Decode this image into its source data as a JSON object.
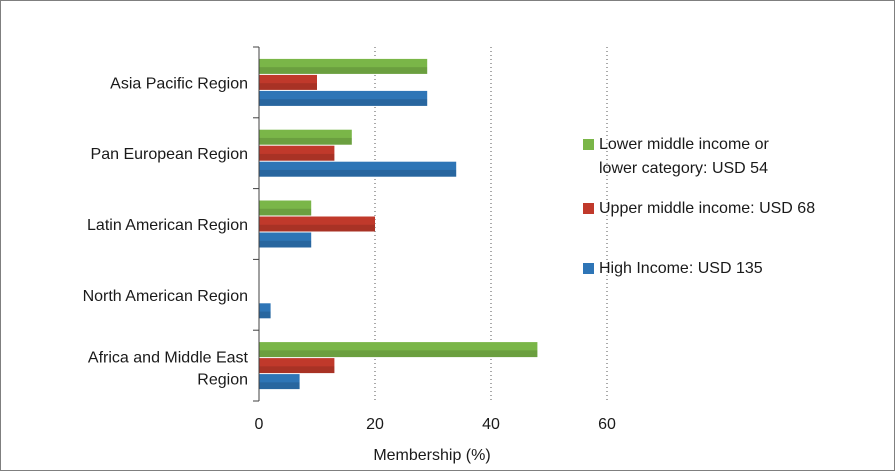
{
  "chart_data": {
    "type": "bar",
    "orientation": "horizontal",
    "categories": [
      "Asia Pacific Region",
      "Pan European Region",
      "Latin American Region",
      "North American Region",
      "Africa and Middle East Region"
    ],
    "series": [
      {
        "name": "Lower middle income or lower category: USD 54",
        "color": "#7ab648",
        "values": [
          29,
          16,
          9,
          0,
          48
        ]
      },
      {
        "name": "Upper middle income: USD 68",
        "color": "#c0392b",
        "values": [
          10,
          13,
          20,
          0,
          13
        ]
      },
      {
        "name": "High Income: USD 135",
        "color": "#2e75b6",
        "values": [
          29,
          34,
          9,
          2,
          7
        ]
      }
    ],
    "xlabel": "Membership (%)",
    "xlim": [
      0,
      60
    ],
    "xticks": [
      0,
      20,
      40,
      60
    ],
    "grid": "vertical dotted",
    "legend": "right"
  }
}
